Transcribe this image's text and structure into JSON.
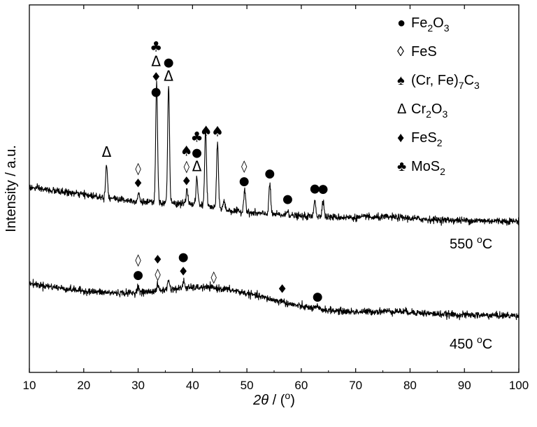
{
  "chart_data": {
    "type": "line",
    "xlabel_italic": "2θ",
    "xlabel_rest": " / (o)",
    "ylabel": "Intensity / a.u.",
    "xlim": [
      10,
      100
    ],
    "x_ticks": [
      10,
      20,
      30,
      40,
      50,
      60,
      70,
      80,
      90,
      100
    ],
    "y_ticks_shown": false,
    "series": [
      {
        "name": "550 °C",
        "label_base": "550 ",
        "label_sup": "o",
        "label_unit": "C",
        "baseline": [
          [
            10,
            62
          ],
          [
            20,
            52
          ],
          [
            30,
            42
          ],
          [
            40,
            33
          ],
          [
            50,
            26
          ],
          [
            60,
            21
          ],
          [
            70,
            19
          ],
          [
            80,
            17
          ],
          [
            90,
            15
          ],
          [
            100,
            14
          ]
        ],
        "humps": [
          [
            40,
            4,
            5
          ],
          [
            77,
            3,
            2
          ]
        ],
        "noise": 2.4,
        "peaks": [
          [
            24.2,
            48
          ],
          [
            30.1,
            12
          ],
          [
            33.4,
            170
          ],
          [
            35.6,
            165
          ],
          [
            39.0,
            20
          ],
          [
            40.8,
            38
          ],
          [
            42.4,
            108
          ],
          [
            44.6,
            93
          ],
          [
            45.8,
            12
          ],
          [
            49.6,
            35
          ],
          [
            54.2,
            43
          ],
          [
            57.5,
            8
          ],
          [
            62.5,
            25
          ],
          [
            64.0,
            25
          ],
          [
            72.0,
            4
          ]
        ]
      },
      {
        "name": "450 °C",
        "label_base": "450 ",
        "label_sup": "o",
        "label_unit": "C",
        "baseline": [
          [
            10,
            50
          ],
          [
            20,
            38
          ],
          [
            30,
            27
          ],
          [
            40,
            20
          ],
          [
            50,
            14
          ],
          [
            60,
            10
          ],
          [
            70,
            8
          ],
          [
            80,
            7
          ],
          [
            90,
            5
          ],
          [
            100,
            4
          ]
        ],
        "humps": [
          [
            44,
            10,
            26
          ],
          [
            77,
            4,
            3
          ]
        ],
        "noise": 2.4,
        "peaks": [
          [
            30.0,
            10
          ],
          [
            33.6,
            8
          ],
          [
            35.6,
            14
          ],
          [
            38.4,
            10
          ],
          [
            56.5,
            3
          ],
          [
            62.9,
            3
          ]
        ]
      }
    ],
    "legend": {
      "placement": "top-right",
      "entries": [
        {
          "symbol": "●",
          "base": "Fe",
          "parts": [
            [
              "2",
              "sub"
            ],
            [
              "O",
              ""
            ],
            [
              "3",
              "sub"
            ]
          ]
        },
        {
          "symbol": "◊",
          "base": "FeS",
          "parts": []
        },
        {
          "symbol": "♠",
          "base": "(Cr, Fe)",
          "parts": [
            [
              "7",
              "sub"
            ],
            [
              "C",
              ""
            ],
            [
              "3",
              "sub"
            ]
          ]
        },
        {
          "symbol": "Δ",
          "base": "Cr",
          "parts": [
            [
              "2",
              "sub"
            ],
            [
              "O",
              ""
            ],
            [
              "3",
              "sub"
            ]
          ]
        },
        {
          "symbol": "♦",
          "base": "FeS",
          "parts": [
            [
              "2",
              "sub"
            ]
          ]
        },
        {
          "symbol": "♣",
          "base": "MoS",
          "parts": [
            [
              "2",
              "sub"
            ]
          ]
        }
      ]
    },
    "annotations": [
      {
        "series": 0,
        "x": 24.2,
        "stack": [
          "Δ"
        ]
      },
      {
        "series": 0,
        "x": 30.0,
        "stack": [
          "♦",
          "◊"
        ]
      },
      {
        "series": 0,
        "x": 33.3,
        "stack": [
          "●",
          "♦",
          "Δ",
          "♣"
        ]
      },
      {
        "series": 0,
        "x": 35.6,
        "stack": [
          "Δ",
          "●"
        ]
      },
      {
        "series": 0,
        "x": 38.9,
        "stack": [
          "♦",
          "◊",
          "♠"
        ]
      },
      {
        "series": 0,
        "x": 40.8,
        "stack": [
          "Δ",
          "●",
          "♣"
        ]
      },
      {
        "series": 0,
        "x": 42.5,
        "stack": [
          "♠"
        ]
      },
      {
        "series": 0,
        "x": 44.6,
        "stack": [
          "♠"
        ]
      },
      {
        "series": 0,
        "x": 49.5,
        "stack": [
          "●",
          "◊"
        ]
      },
      {
        "series": 0,
        "x": 54.2,
        "stack": [
          "●"
        ]
      },
      {
        "series": 0,
        "x": 57.5,
        "stack": [
          "●"
        ]
      },
      {
        "series": 0,
        "x": 62.5,
        "stack": [
          "●"
        ]
      },
      {
        "series": 0,
        "x": 64.0,
        "stack": [
          "●"
        ]
      },
      {
        "series": 1,
        "x": 30.0,
        "stack": [
          "●",
          "◊"
        ]
      },
      {
        "series": 1,
        "x": 33.6,
        "stack": [
          "◊",
          "♦"
        ]
      },
      {
        "series": 1,
        "x": 38.3,
        "stack": [
          "♦",
          "●"
        ]
      },
      {
        "series": 1,
        "x": 43.9,
        "stack": [
          "◊"
        ]
      },
      {
        "series": 1,
        "x": 56.5,
        "stack": [
          "♦"
        ]
      },
      {
        "series": 1,
        "x": 63.0,
        "stack": [
          "●"
        ]
      }
    ]
  }
}
